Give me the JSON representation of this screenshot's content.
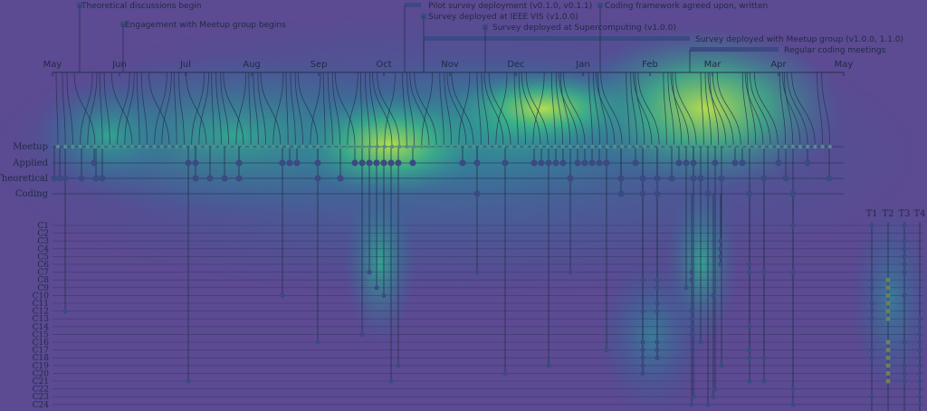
{
  "events": [
    {
      "label": "Theoretical discussions begin"
    },
    {
      "label": "Engagement with Meetup group begins"
    },
    {
      "label": "Pilot survey deployment (v0.1.0, v0.1.1)"
    },
    {
      "label": "Survey deployed at IEEE VIS (v1.0.0)"
    },
    {
      "label": "Survey deployed at Supercomputing (v1.0.0)"
    },
    {
      "label": "Coding framework agreed upon, written"
    },
    {
      "label": "Survey deployed with Meetup group (v1.0.0, 1.1.0)"
    },
    {
      "label": "Regular coding meetings"
    }
  ],
  "months": [
    "May",
    "Jun",
    "Jul",
    "Aug",
    "Sep",
    "Oct",
    "Nov",
    "Dec",
    "Jan",
    "Feb",
    "Mar",
    "Apr",
    "May"
  ],
  "rows": [
    "Meetup",
    "Applied",
    "Theoretical",
    "Coding"
  ],
  "codes": [
    "C1",
    "C2",
    "C3",
    "C4",
    "C5",
    "C6",
    "C7",
    "C8",
    "C9",
    "C10",
    "C11",
    "C12",
    "C13",
    "C14",
    "C15",
    "C16",
    "C17",
    "C18",
    "C19",
    "C20",
    "C21",
    "C22",
    "C23",
    "C24"
  ],
  "themes": [
    "T1",
    "T2",
    "T3",
    "T4"
  ],
  "colors": {
    "heat_low": "#5c4a92",
    "heat_mid": "#2aa89a",
    "heat_high": "#b8e04a",
    "ink": "#23314f"
  }
}
